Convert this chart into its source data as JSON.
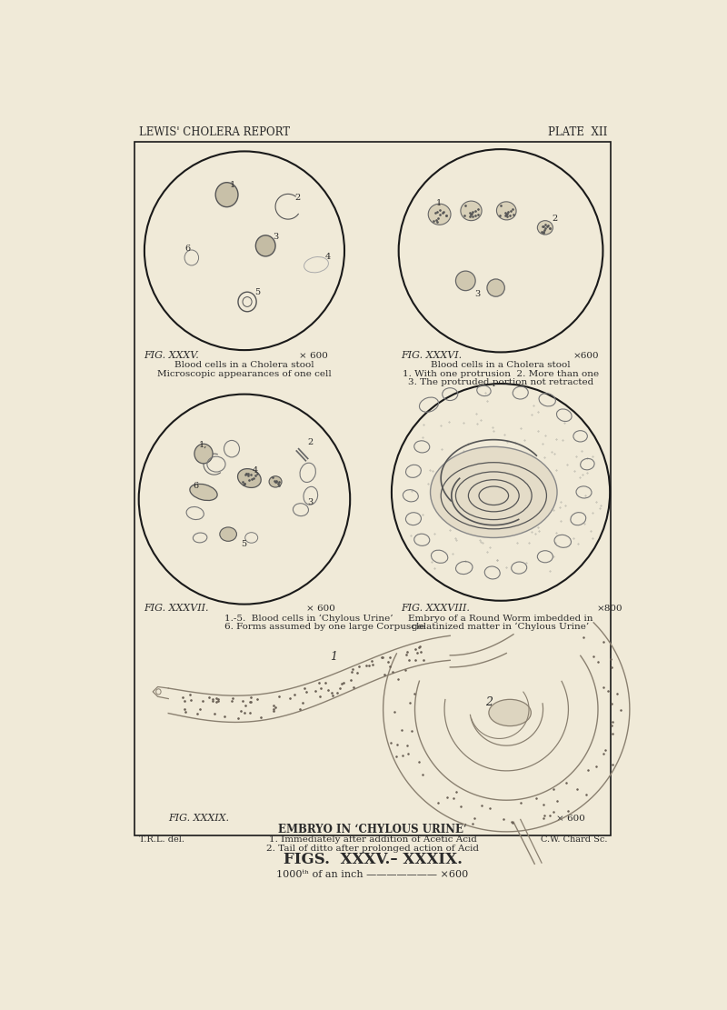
{
  "bg": "#f0ead8",
  "tc": "#2a2a2a",
  "bc": "#1a1a1a",
  "header_left": "LEWIS' CHOLERA REPORT",
  "header_right": "PLATE  XII",
  "footer_left": "T.R.L. del.",
  "footer_right": "C.W. Chard Sc.",
  "bottom_title": "FIGS.  XXXV.– XXXIX.",
  "bottom_sub": "1000ᵗʰ of an inch ——————— ×600",
  "fig35_label": "FIG. XXXV.",
  "fig35_mag": "× 600",
  "fig35_t1": "Blood cells in a Cholera stool",
  "fig35_t2": "Microscopic appearances of one cell",
  "fig36_label": "FIG. XXXVI.",
  "fig36_mag": "×600",
  "fig36_t1": "Blood cells in a Cholera stool",
  "fig36_t2": "1. With one protrusion  2. More than one",
  "fig36_t3": "3. The protruded portion not retracted",
  "fig37_label": "FIG. XXXVII.",
  "fig37_mag": "× 600",
  "fig37_t1": "1.-5.  Blood cells in ‘Chylous Urine’",
  "fig37_t2": "6. Forms assumed by one large Corpuscle",
  "fig38_label": "FIG. XXXVIII.",
  "fig38_mag": "×800",
  "fig38_t1": "Embryo of a Round Worm imbedded in",
  "fig38_t2": "gelatinized matter in ‘Chylous Urine’",
  "fig39_label": "FIG. XXXIX.",
  "fig39_mag": "× 600",
  "fig39_t1": "EMBRYO IN ‘CHYLOUS URINE’",
  "fig39_t2": "1. Immediately after addition of Acetic Acid",
  "fig39_t3": "2. Tail of ditto after prolonged action of Acid"
}
